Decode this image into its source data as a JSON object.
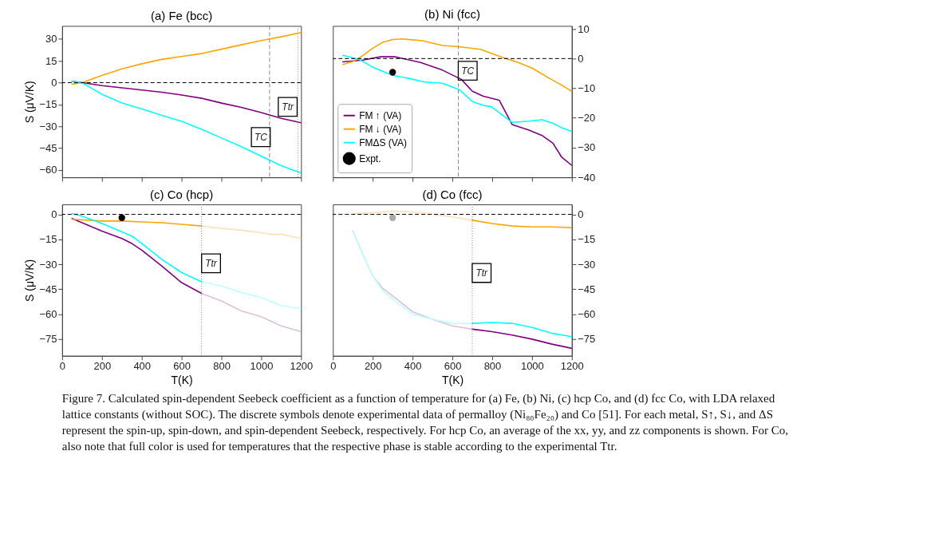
{
  "chart_data": [
    {
      "type": "line",
      "title": "(a)   Fe (bcc)",
      "ylabel": "S (μV/K)",
      "xlim": [
        0,
        1200
      ],
      "xticks": [
        0,
        200,
        400,
        600,
        800,
        1000,
        1200
      ],
      "ylim": [
        -65,
        39
      ],
      "yticks": [
        -60,
        -45,
        -30,
        -15,
        0,
        15,
        30
      ],
      "tick_labels": "y",
      "series": [
        {
          "color": "#800080",
          "x": [
            50,
            100,
            200,
            300,
            400,
            500,
            600,
            700,
            800,
            900,
            1000,
            1100,
            1200
          ],
          "values": [
            1,
            0,
            -2,
            -3.5,
            -5,
            -6.5,
            -8.5,
            -10.7,
            -14,
            -17,
            -20.5,
            -24.5,
            -27.5
          ]
        },
        {
          "color": "#ffa500",
          "x": [
            50,
            100,
            200,
            300,
            400,
            500,
            600,
            700,
            800,
            900,
            1000,
            1100,
            1200
          ],
          "values": [
            -1,
            0,
            5,
            9.5,
            13,
            16,
            18,
            20,
            23,
            26,
            29,
            31.5,
            34.4
          ]
        },
        {
          "color": "#00ffff",
          "x": [
            50,
            100,
            200,
            300,
            400,
            500,
            600,
            700,
            800,
            900,
            1000,
            1100,
            1200
          ],
          "values": [
            1,
            0,
            -8,
            -14,
            -18,
            -22.5,
            -26.5,
            -32,
            -38,
            -44,
            -50.5,
            -57,
            -62
          ]
        }
      ],
      "ref_lines": [
        {
          "axis": "y",
          "value": 0,
          "color": "#000000",
          "line_style": "dashed"
        },
        {
          "axis": "x",
          "value": 1042,
          "color": "#888888",
          "line_style": "dashed"
        },
        {
          "axis": "x",
          "value": 1184,
          "color": "#888888",
          "line_style": "dotted"
        }
      ],
      "annotations": [
        {
          "text": "TC",
          "x": 998,
          "y": -37.4
        },
        {
          "text": "Ttr",
          "x": 1133,
          "y": -16.6
        }
      ]
    },
    {
      "type": "line",
      "title": "(b)   Ni (fcc)",
      "xlim": [
        0,
        1200
      ],
      "xticks": [
        0,
        200,
        400,
        600,
        800,
        1000,
        1200
      ],
      "ylim": [
        -40,
        11
      ],
      "yticks": [
        -40,
        -30,
        -20,
        -10,
        0,
        10
      ],
      "tick_labels": "y",
      "legend": "bottom left",
      "series": [
        {
          "name": "FM ↑ (VA)",
          "color": "#800080",
          "x": [
            50,
            150,
            240,
            310,
            440,
            550,
            645,
            700,
            755,
            835,
            900,
            985,
            1050,
            1105,
            1150,
            1200
          ],
          "values": [
            -1.1,
            -0.5,
            0.6,
            0.6,
            -1.3,
            -3.9,
            -7,
            -11,
            -12.7,
            -14,
            -22.2,
            -24.1,
            -25.9,
            -28.5,
            -33.3,
            -36
          ]
        },
        {
          "name": "FM ↓ (VA)",
          "color": "#ffa500",
          "x": [
            50,
            100,
            150,
            200,
            250,
            300,
            350,
            450,
            550,
            630,
            740,
            850,
            930,
            1000,
            1080,
            1145,
            1200
          ],
          "values": [
            -2,
            -1,
            1,
            3.5,
            5.5,
            6.4,
            6.6,
            6,
            4.4,
            4,
            3.1,
            0.4,
            -1.3,
            -3.2,
            -6.4,
            -8.8,
            -11.1
          ]
        },
        {
          "name": "FMΔS (VA)",
          "color": "#00ffff",
          "x": [
            50,
            135,
            200,
            300,
            375,
            460,
            550,
            635,
            700,
            755,
            795,
            900,
            985,
            1050,
            1105,
            1145,
            1200
          ],
          "values": [
            1.1,
            -0.4,
            -2.9,
            -5.7,
            -6.6,
            -7.9,
            -8.3,
            -10.5,
            -14.5,
            -15.8,
            -16.2,
            -21.5,
            -21.1,
            -20.6,
            -21.8,
            -23.2,
            -24.6
          ]
        },
        {
          "name": "Expt.",
          "type": "scatter",
          "color": "#000000",
          "x": [
            300
          ],
          "values": [
            -4.6
          ]
        }
      ],
      "ref_lines": [
        {
          "axis": "y",
          "value": 0,
          "color": "#000000",
          "line_style": "dashed"
        },
        {
          "axis": "x",
          "value": 630,
          "color": "#888888",
          "line_style": "dashed"
        }
      ],
      "annotations": [
        {
          "text": "TC",
          "x": 677,
          "y": -4.1
        }
      ]
    },
    {
      "type": "line",
      "title": "(c)   Co (hcp)",
      "xlabel": "T(K)",
      "ylabel": "S (μV/K)",
      "xlim": [
        0,
        1200
      ],
      "xticks": [
        0,
        200,
        400,
        600,
        800,
        1000,
        1200
      ],
      "ylim": [
        -85,
        6
      ],
      "yticks": [
        -75,
        -60,
        -45,
        -30,
        -15,
        0
      ],
      "series": [
        {
          "color": "#ffe0b8",
          "x": [
            700,
            800,
            900,
            1000,
            1050,
            1100,
            1200
          ],
          "values": [
            -7,
            -8.5,
            -9.5,
            -11,
            -12,
            -12,
            -14.5
          ]
        },
        {
          "color": "#dcc0dc",
          "x": [
            700,
            800,
            900,
            1000,
            1100,
            1200
          ],
          "values": [
            -47.5,
            -52,
            -58,
            -61.5,
            -67,
            -70.5
          ]
        },
        {
          "color": "#c0ffff",
          "x": [
            700,
            800,
            900,
            1000,
            1100,
            1200
          ],
          "values": [
            -40.5,
            -43,
            -47,
            -50,
            -55,
            -56.5
          ]
        },
        {
          "color": "#800080",
          "x": [
            50,
            100,
            200,
            300,
            350,
            400,
            500,
            600,
            700
          ],
          "values": [
            -2.5,
            -5,
            -10,
            -14.5,
            -17.5,
            -21.5,
            -31,
            -41,
            -47.5
          ]
        },
        {
          "color": "#ffa500",
          "x": [
            50,
            200,
            300,
            400,
            500,
            600,
            700
          ],
          "values": [
            -3,
            -4,
            -4,
            -4.5,
            -5,
            -6,
            -7
          ]
        },
        {
          "color": "#00ffff",
          "x": [
            50,
            100,
            200,
            300,
            350,
            400,
            500,
            600,
            700
          ],
          "values": [
            0.5,
            -1,
            -5.5,
            -10.5,
            -13,
            -17.5,
            -27,
            -35,
            -40.5
          ]
        },
        {
          "type": "scatter",
          "color": "#000000",
          "x": [
            300
          ],
          "values": [
            -2
          ]
        }
      ],
      "ref_lines": [
        {
          "axis": "y",
          "value": 0,
          "color": "#000000",
          "line_style": "dashed"
        },
        {
          "axis": "x",
          "value": 700,
          "color": "#888888",
          "line_style": "dotted"
        }
      ],
      "annotations": [
        {
          "text": "Ttr",
          "x": 748,
          "y": -29.4
        }
      ]
    },
    {
      "type": "line",
      "title": "(d)   Co (fcc)",
      "xlabel": "T(K)",
      "xlim": [
        0,
        1200
      ],
      "xticks": [
        0,
        200,
        400,
        600,
        800,
        1000,
        1200
      ],
      "ylim": [
        -85,
        6
      ],
      "yticks": [
        -75,
        -60,
        -45,
        -30,
        -15,
        0
      ],
      "series": [
        {
          "color": "#ffe0b8",
          "x": [
            100,
            200,
            300,
            400,
            500,
            600,
            700
          ],
          "values": [
            0.5,
            1,
            2,
            1.5,
            0,
            -1.5,
            -3.5
          ]
        },
        {
          "color": "#dcc0dc",
          "x": [
            100,
            150,
            200,
            250,
            300,
            400,
            500,
            600,
            700
          ],
          "values": [
            -10,
            -24,
            -37,
            -44.5,
            -49,
            -58.5,
            -63,
            -67,
            -69
          ]
        },
        {
          "color": "#c0ffff",
          "x": [
            100,
            150,
            200,
            250,
            300,
            400,
            500,
            600,
            700
          ],
          "values": [
            -10,
            -24,
            -37,
            -46,
            -51,
            -60,
            -63,
            -65.5,
            -65.5
          ]
        },
        {
          "color": "#800080",
          "x": [
            700,
            800,
            900,
            1000,
            1100,
            1200
          ],
          "values": [
            -69,
            -70.5,
            -72.5,
            -75,
            -78,
            -80.5
          ]
        },
        {
          "color": "#ffa500",
          "x": [
            700,
            800,
            900,
            1000,
            1100,
            1200
          ],
          "values": [
            -3.5,
            -5.5,
            -7,
            -7.5,
            -7.5,
            -8
          ]
        },
        {
          "color": "#00ffff",
          "x": [
            700,
            800,
            900,
            1000,
            1100,
            1200
          ],
          "values": [
            -65.5,
            -65,
            -65.5,
            -68,
            -71.5,
            -73.5
          ]
        },
        {
          "type": "scatter",
          "color": "#aaaaaa",
          "x": [
            300
          ],
          "values": [
            -2
          ]
        }
      ],
      "ref_lines": [
        {
          "axis": "y",
          "value": 0,
          "color": "#000000",
          "line_style": "dashed"
        },
        {
          "axis": "x",
          "value": 700,
          "color": "#888888",
          "line_style": "dotted"
        }
      ],
      "annotations": [
        {
          "text": "Ttr",
          "x": 747,
          "y": -35.2
        }
      ]
    },
    {
      "type": "other",
      "annotations": [
        "Figure 7. Calculated spin-dependent Seebeck coefficient as a function of temperature for (a) Fe, (b) Ni, (c) hcp Co, and (d) fcc Co, with LDA relaxed lattice constants (without SOC). The discrete symbols denote experimental data of permalloy (Ni₈₀Fe₂₀) and Co [51]. For each metal, S↑, S↓, and ΔS represent the spin-up, spin-down, and spin-dependent Seebeck, respectively. For hcp Co, an average of the xx, yy, and zz components is shown. For Co, also note that full color is used for temperatures that the respective phase is stable according to the experimental Ttr."
      ]
    }
  ]
}
